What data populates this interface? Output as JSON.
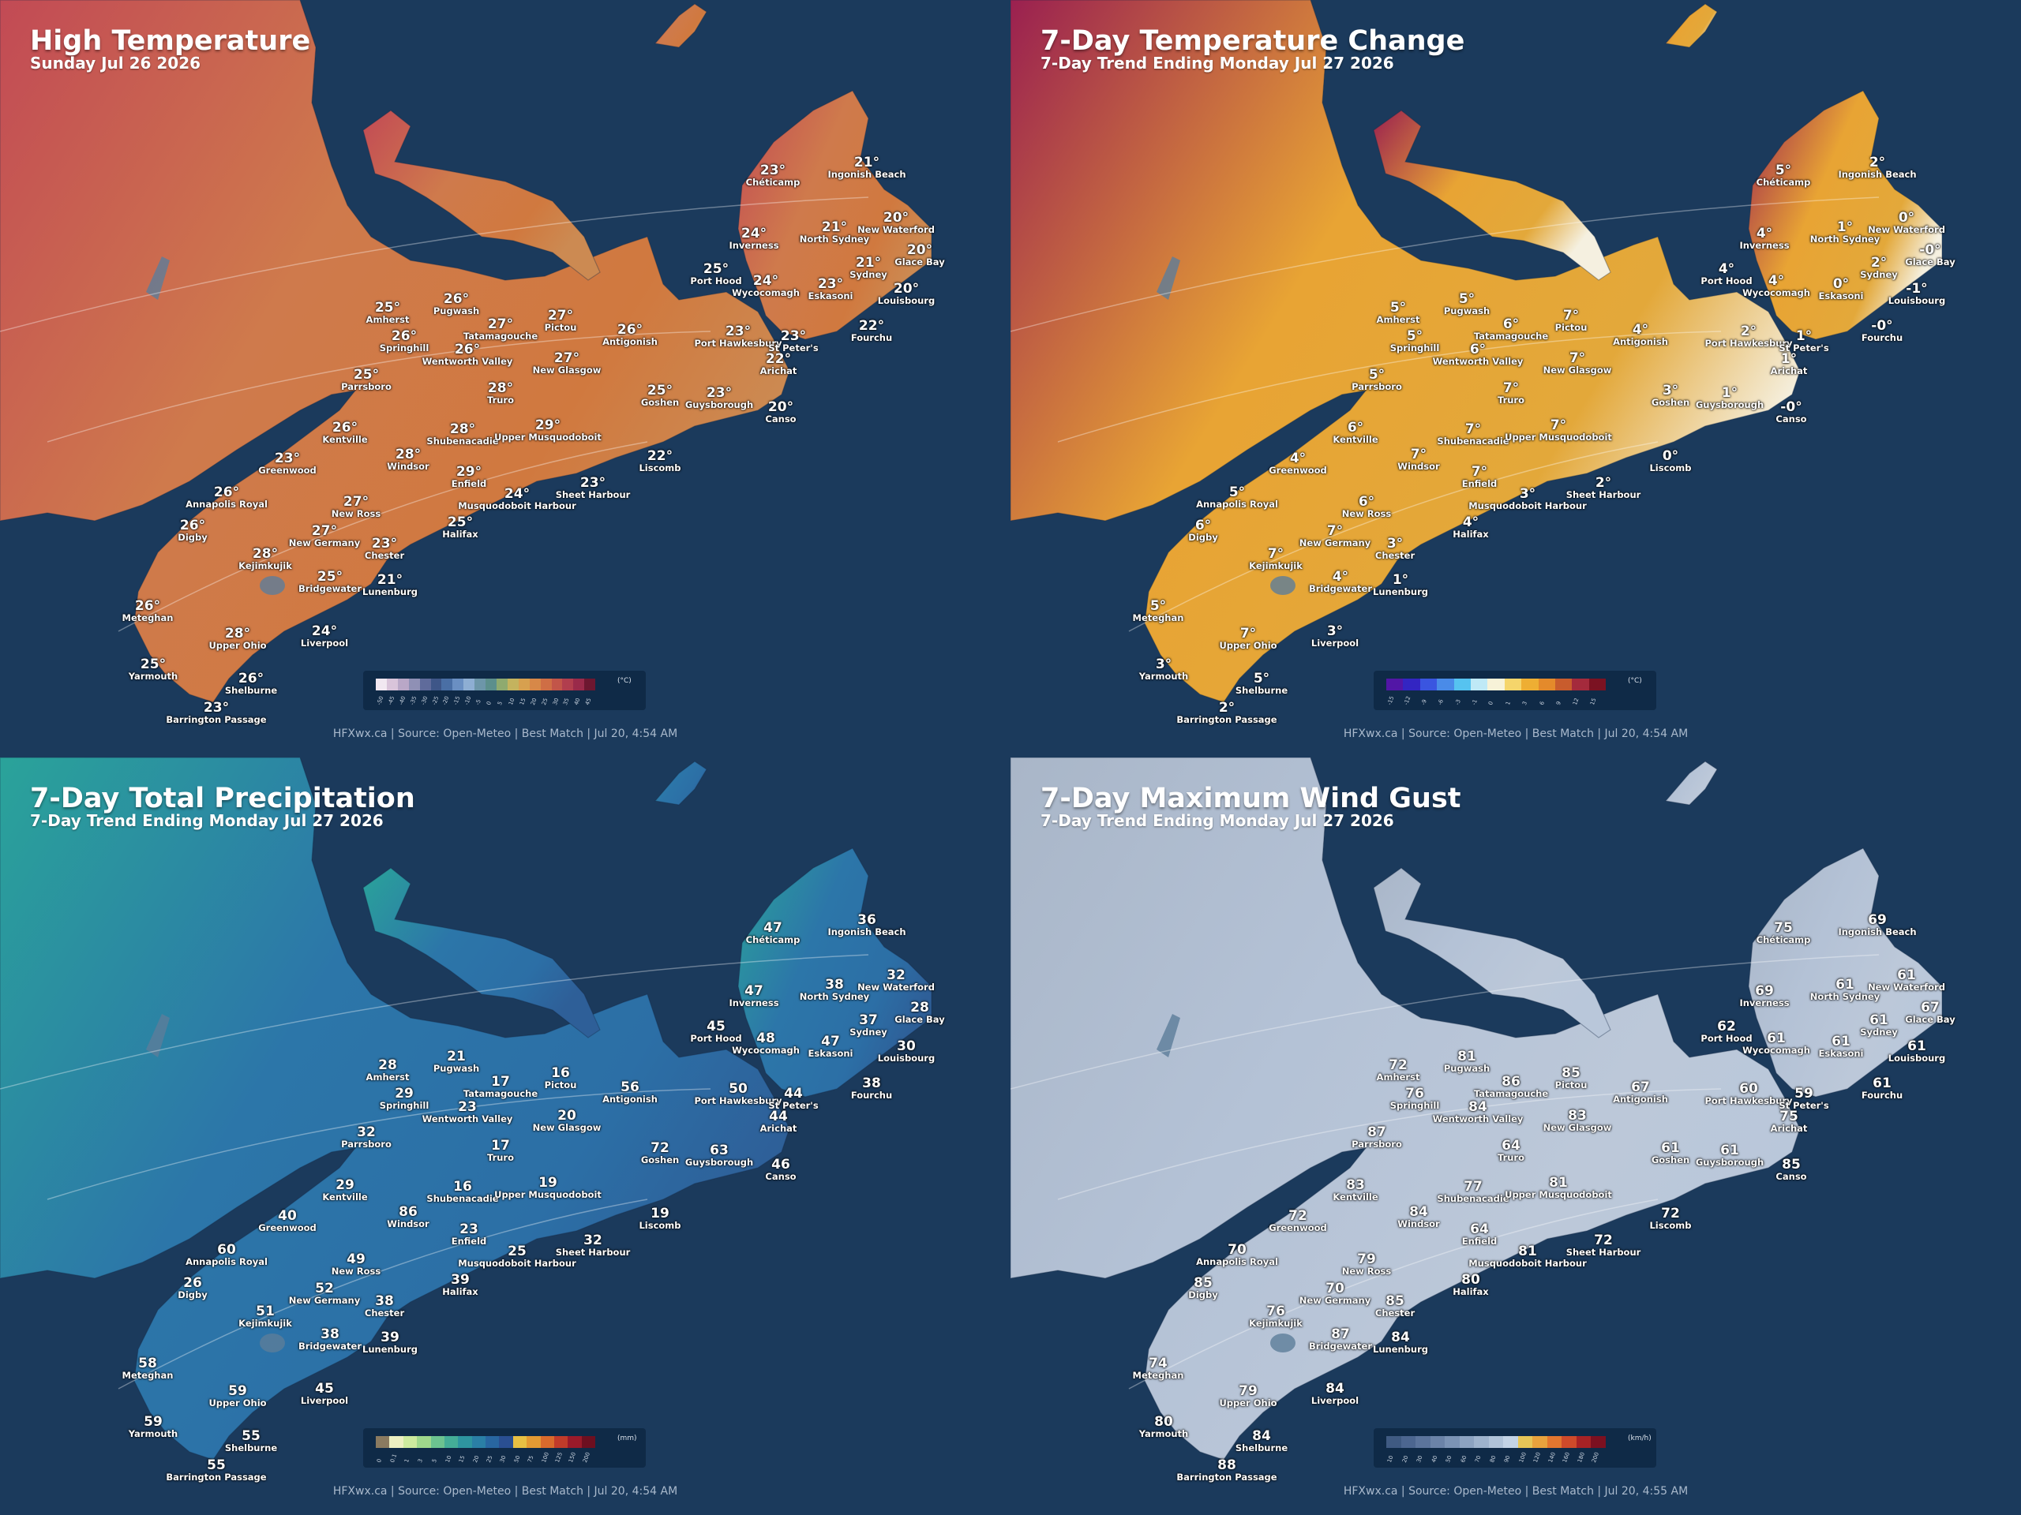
{
  "panels": [
    {
      "id": "temp",
      "title": "High Temperature",
      "subtitle": "Sunday Jul 26 2026",
      "unit": "(°C)",
      "footer": "HFXwx.ca | Source: Open-Meteo | Best Match | Jul 20, 4:54 AM",
      "colors": {
        "west": "#c24a55",
        "east": "#d0793f",
        "land": "#cf7a4c",
        "east2": "#cc8a52"
      },
      "legend": {
        "colors": [
          "#f1e8f1",
          "#d9c4da",
          "#b9a7c7",
          "#8f90b5",
          "#5f6b9b",
          "#3e5688",
          "#4a6fa5",
          "#6a8fc2",
          "#8eaed3",
          "#6d96a9",
          "#5c8f8c",
          "#8faa6f",
          "#c4b35e",
          "#d7a04f",
          "#d78848",
          "#cf6e45",
          "#c25549",
          "#b13e4e",
          "#9a2a4a",
          "#6d1730"
        ],
        "ticks": [
          "-50",
          "-45",
          "-40",
          "-35",
          "-30",
          "-25",
          "-20",
          "-15",
          "-10",
          "-5",
          "0",
          "5",
          "10",
          "15",
          "20",
          "25",
          "30",
          "35",
          "40",
          "45"
        ]
      },
      "values": [
        "23°",
        "21°",
        "24°",
        "21°",
        "20°",
        "20°",
        "25°",
        "24°",
        "21°",
        "23°",
        "20°",
        "25°",
        "26°",
        "27°",
        "27°",
        "26°",
        "26°",
        "26°",
        "23°",
        "23°",
        "22°",
        "22°",
        "25°",
        "27°",
        "28°",
        "25°",
        "23°",
        "20°",
        "26°",
        "28°",
        "29°",
        "28°",
        "23°",
        "29°",
        "22°",
        "26°",
        "27°",
        "24°",
        "23°",
        "26°",
        "27°",
        "25°",
        "28°",
        "23°",
        "25°",
        "21°",
        "26°",
        "28°",
        "24°",
        "25°",
        "26°",
        "23°"
      ]
    },
    {
      "id": "change",
      "title": "7-Day Temperature Change",
      "subtitle": "7-Day Trend Ending Monday Jul 27 2026",
      "unit": "(°C)",
      "footer": "HFXwx.ca | Source: Open-Meteo | Best Match | Jul 20, 4:54 AM",
      "colors": {
        "west": "#9a2050",
        "east": "#e3a83a",
        "land": "#e8a434",
        "east2": "#f5f0e0"
      },
      "legend": {
        "colors": [
          "#5216a6",
          "#3325c2",
          "#3a55e0",
          "#4a8be8",
          "#56c3f0",
          "#bfe9f6",
          "#f7f2d8",
          "#f5d56b",
          "#eeae33",
          "#e48a2b",
          "#c85c2d",
          "#a42a3c",
          "#7b1222"
        ],
        "ticks": [
          "-15",
          "-12",
          "-9",
          "-6",
          "-3",
          "-1",
          "0",
          "1",
          "3",
          "6",
          "9",
          "12",
          "15"
        ]
      },
      "values": [
        "5°",
        "2°",
        "4°",
        "1°",
        "0°",
        "-0°",
        "4°",
        "4°",
        "2°",
        "0°",
        "-1°",
        "5°",
        "5°",
        "6°",
        "7°",
        "4°",
        "5°",
        "6°",
        "2°",
        "1°",
        "-0°",
        "1°",
        "5°",
        "7°",
        "7°",
        "3°",
        "1°",
        "-0°",
        "6°",
        "7°",
        "7°",
        "7°",
        "4°",
        "7°",
        "0°",
        "5°",
        "6°",
        "3°",
        "2°",
        "6°",
        "7°",
        "4°",
        "7°",
        "3°",
        "4°",
        "1°",
        "5°",
        "7°",
        "3°",
        "3°",
        "5°",
        "2°"
      ]
    },
    {
      "id": "precip",
      "title": "7-Day Total Precipitation",
      "subtitle": "7-Day Trend Ending Monday Jul 27 2026",
      "unit": "(mm)",
      "footer": "HFXwx.ca | Source: Open-Meteo | Best Match | Jul 20, 4:54 AM",
      "colors": {
        "west": "#2aa39a",
        "east": "#2c6fa6",
        "land": "#2c76a9",
        "east2": "#2e5f98"
      },
      "legend": {
        "colors": [
          "#8a7a60",
          "#ecefc1",
          "#cdea9e",
          "#9fd88c",
          "#6cc390",
          "#44ad97",
          "#2e95a0",
          "#2a7fa6",
          "#2866a1",
          "#2a4f92",
          "#e8c043",
          "#e39a33",
          "#d96a2c",
          "#c13b2a",
          "#9a1a2a",
          "#6d0f20"
        ],
        "ticks": [
          "0",
          "0.1",
          "1",
          "3",
          "5",
          "10",
          "15",
          "20",
          "25",
          "30",
          "50",
          "75",
          "100",
          "125",
          "150",
          "200"
        ]
      },
      "values": [
        "47",
        "36",
        "47",
        "38",
        "32",
        "28",
        "45",
        "48",
        "37",
        "47",
        "30",
        "28",
        "21",
        "17",
        "16",
        "56",
        "29",
        "23",
        "50",
        "44",
        "38",
        "44",
        "32",
        "20",
        "17",
        "72",
        "63",
        "46",
        "29",
        "16",
        "19",
        "86",
        "40",
        "23",
        "19",
        "60",
        "49",
        "25",
        "32",
        "26",
        "52",
        "39",
        "51",
        "38",
        "38",
        "39",
        "58",
        "59",
        "45",
        "59",
        "55",
        "55"
      ]
    },
    {
      "id": "wind",
      "title": "7-Day Maximum Wind Gust",
      "subtitle": "7-Day Trend Ending Monday Jul 27 2026",
      "unit": "(km/h)",
      "footer": "HFXwx.ca | Source: Open-Meteo | Best Match | Jul 20, 4:55 AM",
      "colors": {
        "west": "#a9b6c8",
        "east": "#bcc8d9",
        "land": "#b4c2d6",
        "east2": "#b9c7da"
      },
      "legend": {
        "colors": [
          "#3f5a82",
          "#4c6690",
          "#5b749c",
          "#6b83a8",
          "#7b93b5",
          "#8ca3c1",
          "#9eb3cd",
          "#b0c3d9",
          "#c3d3e5",
          "#e6c557",
          "#e8a23d",
          "#e2762f",
          "#cf4a2a",
          "#a72225",
          "#7c1020"
        ],
        "ticks": [
          "10",
          "20",
          "30",
          "40",
          "50",
          "60",
          "70",
          "80",
          "90",
          "100",
          "120",
          "140",
          "160",
          "180",
          "200"
        ]
      },
      "values": [
        "75",
        "69",
        "69",
        "61",
        "61",
        "67",
        "62",
        "61",
        "61",
        "61",
        "61",
        "72",
        "81",
        "86",
        "85",
        "67",
        "76",
        "84",
        "60",
        "59",
        "61",
        "75",
        "87",
        "83",
        "64",
        "61",
        "61",
        "85",
        "83",
        "77",
        "81",
        "84",
        "72",
        "64",
        "72",
        "70",
        "79",
        "81",
        "72",
        "85",
        "70",
        "80",
        "76",
        "85",
        "87",
        "84",
        "74",
        "79",
        "84",
        "80",
        "84",
        "88"
      ]
    }
  ],
  "places": [
    "Chéticamp",
    "Ingonish Beach",
    "Inverness",
    "North Sydney",
    "New Waterford",
    "Glace Bay",
    "Port Hood",
    "Wycocomagh",
    "Sydney",
    "Eskasoni",
    "Louisbourg",
    "Amherst",
    "Pugwash",
    "Tatamagouche",
    "Pictou",
    "Antigonish",
    "Springhill",
    "Wentworth Valley",
    "Port Hawkesbury",
    "St Peter's",
    "Fourchu",
    "Arichat",
    "Parrsboro",
    "New Glasgow",
    "Truro",
    "Goshen",
    "Guysborough",
    "Canso",
    "Kentville",
    "Shubenacadie",
    "Upper Musquodoboit",
    "Windsor",
    "Greenwood",
    "Enfield",
    "Liscomb",
    "Annapolis Royal",
    "New Ross",
    "Musquodoboit Harbour",
    "Sheet Harbour",
    "Digby",
    "New Germany",
    "Halifax",
    "Kejimkujik",
    "Chester",
    "Bridgewater",
    "Lunenburg",
    "Meteghan",
    "Upper Ohio",
    "Liverpool",
    "Yarmouth",
    "Shelburne",
    "Barrington Passage"
  ]
}
